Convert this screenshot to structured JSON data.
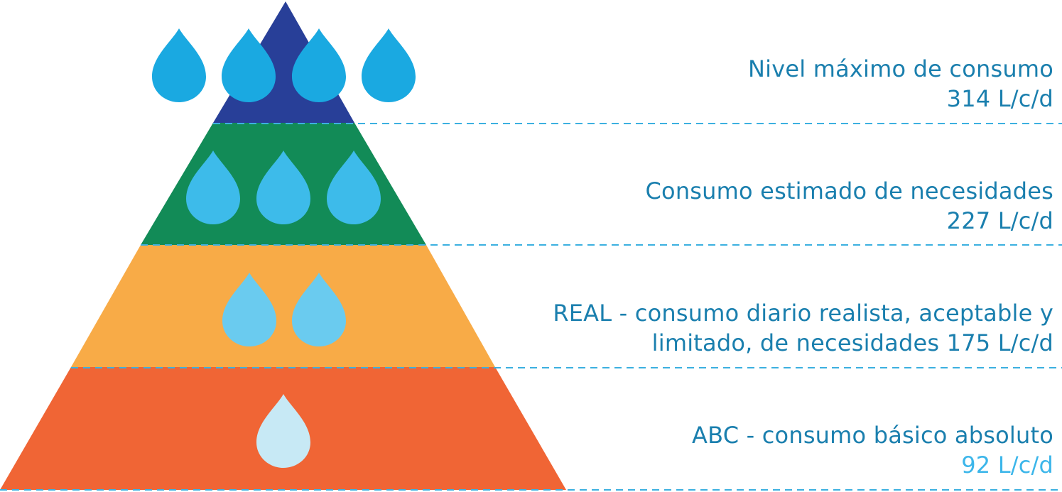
{
  "levels": [
    {
      "id": "maximo",
      "title": "Nivel máximo de consumo",
      "value": "314 L/c/d",
      "color": "#283f98",
      "drop_color": "#1aa9e1",
      "drops": 4
    },
    {
      "id": "estimado",
      "title": "Consumo estimado de necesidades",
      "value": "227 L/c/d",
      "color": "#128b57",
      "drop_color": "#3dbbea",
      "drops": 3
    },
    {
      "id": "real",
      "title": "REAL - consumo diario realista, aceptable y",
      "title2": "limitado, de necesidades 175 L/c/d",
      "color": "#f8ab47",
      "drop_color": "#6acbef",
      "drops": 2
    },
    {
      "id": "abc",
      "title": "ABC - consumo básico absoluto",
      "value": "92 L/c/d",
      "color": "#f06535",
      "drop_color": "#c7e9f5",
      "drops": 1
    }
  ],
  "colors": {
    "label_text": "#1a7fae",
    "label_value_light": "#3cb6ea",
    "dashed_line": "#3cb0e0"
  }
}
